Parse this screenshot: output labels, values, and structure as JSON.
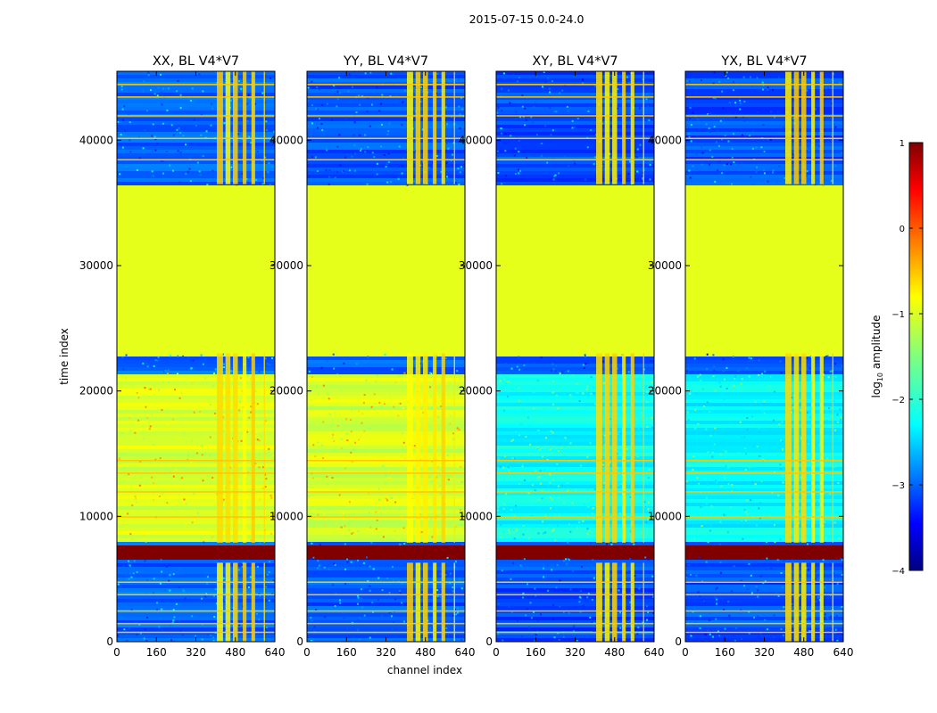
{
  "figure": {
    "title": "2015-07-15 0.0-24.0",
    "xlabel": "channel index",
    "ylabel": "time index"
  },
  "chart_data": {
    "type": "heatmap",
    "title": "2015-07-15 0.0-24.0",
    "xlabel": "channel index",
    "ylabel": "time index",
    "xlim": [
      0,
      640
    ],
    "ylim": [
      0,
      45500
    ],
    "xticks": [
      0,
      160,
      320,
      480,
      640
    ],
    "yticks": [
      0,
      10000,
      20000,
      30000,
      40000
    ],
    "panels": [
      {
        "title": "XX, BL V4*V7",
        "pol": "XX",
        "bg_level": -1.05,
        "low_level": -2.9
      },
      {
        "title": "YY, BL V4*V7",
        "pol": "YY",
        "bg_level": -1.1,
        "low_level": -2.95
      },
      {
        "title": "XY, BL V4*V7",
        "pol": "XY",
        "bg_level": -2.1,
        "low_level": -3.0
      },
      {
        "title": "YX, BL V4*V7",
        "pol": "YX",
        "bg_level": -2.15,
        "low_level": -3.0
      }
    ],
    "flagged_time_range": [
      23000,
      36500
    ],
    "flagged_value": -1.0,
    "saturated_time_range": [
      6800,
      7800
    ],
    "saturated_value": 1.0,
    "bright_channel_bands": [
      [
        405,
        430
      ],
      [
        440,
        460
      ],
      [
        470,
        490
      ],
      [
        510,
        525
      ],
      [
        545,
        560
      ],
      [
        595,
        600
      ]
    ],
    "colorbar": {
      "label": "log",
      "label_sub": "10",
      "label_rest": " amplitude",
      "vmin": -4,
      "vmax": 1,
      "ticks": [
        1,
        0,
        -1,
        -2,
        -3,
        -4
      ],
      "tick_labels": [
        "1",
        "0",
        "−1",
        "−2",
        "−3",
        "−4"
      ],
      "colormap": "jet"
    }
  }
}
